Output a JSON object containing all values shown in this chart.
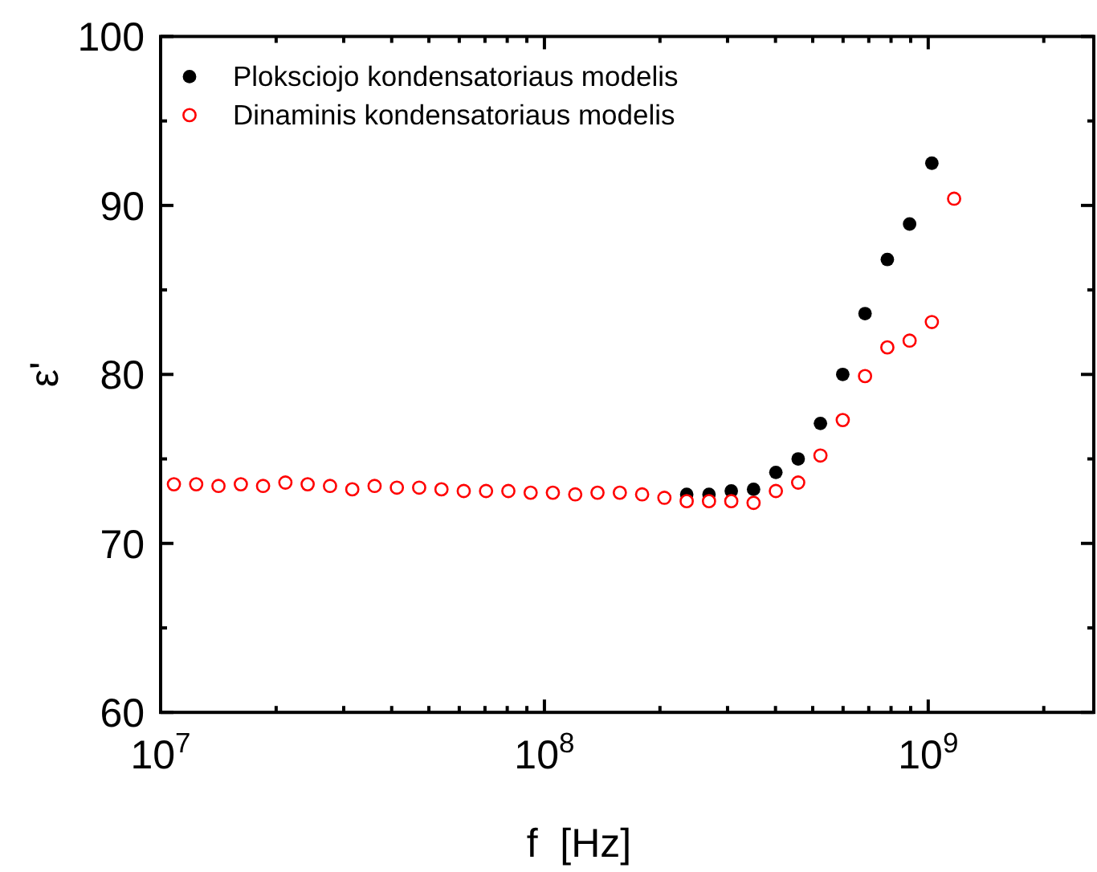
{
  "chart_data": {
    "type": "scatter",
    "xlabel": "f  [Hz]",
    "ylabel": "ε'",
    "log": "x",
    "legend": "top left",
    "marker": "circle",
    "grid": false,
    "x": [
      10830000.0,
      12380000.0,
      14150000.0,
      16180000.0,
      18490000.0,
      21140000.0,
      24160000.0,
      27630000.0,
      31580000.0,
      36100000.0,
      41260000.0,
      47170000.0,
      53920000.0,
      61630000.0,
      70450000.0,
      80540000.0,
      92060000.0,
      105200000.0,
      120300000.0,
      137500000.0,
      157200000.0,
      179700000.0,
      205400000.0,
      234800000.0,
      268400000.0,
      306800000.0,
      350700000.0,
      400900000.0,
      458300000.0,
      523800000.0,
      598800000.0,
      684500000.0,
      782500000.0,
      894300000.0,
      1022000000.0,
      1168000000.0
    ],
    "series": [
      {
        "name": "Ploksciojo kondensatoriaus modelis",
        "color": "#000000",
        "values": [
          null,
          null,
          null,
          null,
          null,
          null,
          null,
          null,
          null,
          null,
          null,
          null,
          null,
          null,
          null,
          null,
          null,
          null,
          null,
          null,
          null,
          null,
          null,
          72.9,
          72.9,
          73.1,
          73.2,
          74.2,
          75.0,
          77.1,
          80.0,
          83.6,
          86.8,
          88.9,
          92.5,
          null
        ]
      },
      {
        "name": "Dinaminis kondensatoriaus modelis",
        "color": "#ff0000",
        "values": [
          73.5,
          73.5,
          73.4,
          73.5,
          73.4,
          73.6,
          73.5,
          73.4,
          73.2,
          73.4,
          73.3,
          73.3,
          73.2,
          73.1,
          73.1,
          73.1,
          73.0,
          73.0,
          72.9,
          73.0,
          73.0,
          72.9,
          72.7,
          72.5,
          72.5,
          72.5,
          72.4,
          73.1,
          73.6,
          75.2,
          77.3,
          79.9,
          81.6,
          82.0,
          83.1,
          90.4
        ]
      }
    ],
    "xlim": [
      10000000.0,
      2700000000.0
    ],
    "xticks": [
      {
        "value": 10000000.0,
        "label": "10$^{7}$"
      },
      {
        "value": 20000000.0,
        "label": null
      },
      {
        "value": 30000000.0,
        "label": null
      },
      {
        "value": 40000000.0,
        "label": null
      },
      {
        "value": 50000000.0,
        "label": null
      },
      {
        "value": 60000000.0,
        "label": null
      },
      {
        "value": 70000000.0,
        "label": null
      },
      {
        "value": 80000000.0,
        "label": null
      },
      {
        "value": 90000000.0,
        "label": null
      },
      {
        "value": 100000000.0,
        "label": "10$^{8}$"
      },
      {
        "value": 200000000.0,
        "label": null
      },
      {
        "value": 300000000.0,
        "label": null
      },
      {
        "value": 400000000.0,
        "label": null
      },
      {
        "value": 500000000.0,
        "label": null
      },
      {
        "value": 600000000.0,
        "label": null
      },
      {
        "value": 700000000.0,
        "label": null
      },
      {
        "value": 800000000.0,
        "label": null
      },
      {
        "value": 900000000.0,
        "label": null
      },
      {
        "value": 1000000000.0,
        "label": "10$^{9}$"
      },
      {
        "value": 2000000000.0,
        "label": null
      }
    ],
    "ylim": [
      60,
      100
    ],
    "yticks": [
      60,
      {
        "value": 65,
        "label": null
      },
      70,
      {
        "value": 75,
        "label": null
      },
      80,
      {
        "value": 85,
        "label": null
      },
      90,
      {
        "value": 95,
        "label": null
      },
      100
    ]
  }
}
